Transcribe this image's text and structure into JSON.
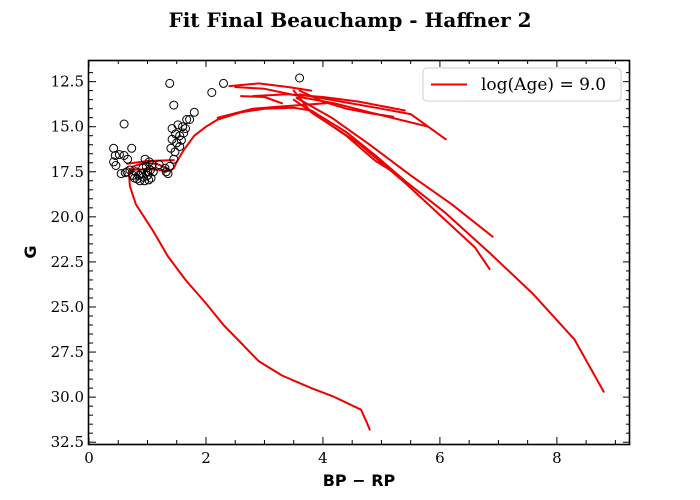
{
  "chart_data": {
    "type": "scatter",
    "title": "Fit Final Beauchamp - Haffner 2",
    "xlabel": "BP − RP",
    "ylabel": "G",
    "xlim": [
      0,
      9.25
    ],
    "ylim": [
      32.6,
      11.3
    ],
    "y_inverted": true,
    "x_ticks": [
      0,
      2,
      4,
      6,
      8
    ],
    "x_tick_labels": [
      "0",
      "2",
      "4",
      "6",
      "8"
    ],
    "y_ticks": [
      12.5,
      15.0,
      17.5,
      20.0,
      22.5,
      25.0,
      27.5,
      30.0,
      32.5
    ],
    "y_tick_labels": [
      "12.5",
      "15.0",
      "17.5",
      "20.0",
      "22.5",
      "25.0",
      "27.5",
      "30.0",
      "32.5"
    ],
    "grid": false,
    "legend_position": "top-right",
    "colors": {
      "isochrone": "#ee0000",
      "points": "#000000"
    },
    "series": [
      {
        "name": "log(Age) = 9.0",
        "kind": "line",
        "segments": [
          [
            [
              4.8,
              31.8
            ],
            [
              4.75,
              31.4
            ],
            [
              4.65,
              30.7
            ],
            [
              4.2,
              30.0
            ],
            [
              3.8,
              29.5
            ],
            [
              3.3,
              28.8
            ],
            [
              2.9,
              28.0
            ],
            [
              2.6,
              27.0
            ],
            [
              2.3,
              26.0
            ],
            [
              2.0,
              24.8
            ],
            [
              1.65,
              23.5
            ],
            [
              1.35,
              22.2
            ],
            [
              1.1,
              20.8
            ],
            [
              0.8,
              19.3
            ],
            [
              0.7,
              18.3
            ],
            [
              0.68,
              17.5
            ],
            [
              0.75,
              17.2
            ],
            [
              0.95,
              17.0
            ],
            [
              1.15,
              17.05
            ],
            [
              1.3,
              17.25
            ],
            [
              1.38,
              17.45
            ],
            [
              1.45,
              17.3
            ],
            [
              1.5,
              16.95
            ],
            [
              1.62,
              16.3
            ],
            [
              1.8,
              15.5
            ],
            [
              2.0,
              15.0
            ],
            [
              2.2,
              14.6
            ],
            [
              2.6,
              14.2
            ],
            [
              3.0,
              14.0
            ],
            [
              3.5,
              13.95
            ],
            [
              3.8,
              14.1
            ],
            [
              4.0,
              14.5
            ],
            [
              4.4,
              15.3
            ],
            [
              4.9,
              16.6
            ],
            [
              5.4,
              18.0
            ],
            [
              6.1,
              19.8
            ],
            [
              6.85,
              22.0
            ],
            [
              7.6,
              24.3
            ],
            [
              8.3,
              26.8
            ],
            [
              8.8,
              29.7
            ]
          ],
          [
            [
              3.5,
              13.5
            ],
            [
              3.9,
              14.4
            ],
            [
              4.4,
              15.5
            ],
            [
              4.9,
              16.9
            ],
            [
              5.2,
              17.5
            ]
          ],
          [
            [
              3.55,
              13.4
            ],
            [
              4.15,
              14.5
            ],
            [
              4.8,
              16.0
            ],
            [
              5.5,
              17.7
            ],
            [
              6.2,
              19.3
            ],
            [
              6.9,
              21.1
            ]
          ],
          [
            [
              3.5,
              13.0
            ],
            [
              3.8,
              14.2
            ],
            [
              4.6,
              15.9
            ],
            [
              5.4,
              18.1
            ],
            [
              6.1,
              20.2
            ],
            [
              6.6,
              21.7
            ],
            [
              6.85,
              22.9
            ]
          ],
          [
            [
              3.6,
              13.0
            ],
            [
              4.0,
              13.6
            ],
            [
              4.4,
              14.0
            ],
            [
              4.8,
              14.25
            ],
            [
              5.2,
              14.45
            ]
          ],
          [
            [
              3.6,
              13.2
            ],
            [
              4.3,
              13.6
            ],
            [
              5.0,
              14.0
            ],
            [
              5.5,
              14.3
            ],
            [
              6.1,
              15.7
            ]
          ],
          [
            [
              3.6,
              13.35
            ],
            [
              4.2,
              13.7
            ],
            [
              4.8,
              14.2
            ],
            [
              5.3,
              14.6
            ],
            [
              5.8,
              15.0
            ]
          ],
          [
            [
              2.8,
              13.3
            ],
            [
              3.4,
              13.2
            ],
            [
              4.0,
              13.35
            ],
            [
              4.6,
              13.6
            ],
            [
              5.4,
              14.1
            ]
          ],
          [
            [
              2.5,
              12.8
            ],
            [
              3.0,
              12.9
            ],
            [
              3.6,
              13.3
            ]
          ],
          [
            [
              2.4,
              12.75
            ],
            [
              2.9,
              12.6
            ],
            [
              3.4,
              12.8
            ],
            [
              3.8,
              13.0
            ]
          ],
          [
            [
              2.2,
              14.5
            ],
            [
              2.8,
              14.0
            ],
            [
              3.2,
              13.9
            ],
            [
              3.6,
              13.8
            ],
            [
              4.05,
              13.7
            ]
          ],
          [
            [
              2.6,
              13.3
            ],
            [
              3.0,
              13.35
            ],
            [
              3.3,
              13.7
            ]
          ],
          [
            [
              0.65,
              17.05
            ],
            [
              1.0,
              16.9
            ],
            [
              1.45,
              16.85
            ]
          ],
          [
            [
              0.7,
              17.4
            ],
            [
              1.0,
              17.35
            ],
            [
              1.38,
              17.45
            ]
          ]
        ]
      },
      {
        "name": "",
        "kind": "scatter",
        "points": [
          [
            0.42,
            16.2
          ],
          [
            0.45,
            16.6
          ],
          [
            0.42,
            16.95
          ],
          [
            0.46,
            17.15
          ],
          [
            0.52,
            16.55
          ],
          [
            0.55,
            17.6
          ],
          [
            0.6,
            16.6
          ],
          [
            0.6,
            14.85
          ],
          [
            0.62,
            17.55
          ],
          [
            0.65,
            17.5
          ],
          [
            0.66,
            16.8
          ],
          [
            0.7,
            17.4
          ],
          [
            0.73,
            16.2
          ],
          [
            0.75,
            17.7
          ],
          [
            0.78,
            17.85
          ],
          [
            0.8,
            17.5
          ],
          [
            0.82,
            17.9
          ],
          [
            0.85,
            17.7
          ],
          [
            0.87,
            18.0
          ],
          [
            0.9,
            17.6
          ],
          [
            0.92,
            17.3
          ],
          [
            0.93,
            17.8
          ],
          [
            0.95,
            18.0
          ],
          [
            0.96,
            16.8
          ],
          [
            0.98,
            17.2
          ],
          [
            1.0,
            17.5
          ],
          [
            1.0,
            17.7
          ],
          [
            1.02,
            17.95
          ],
          [
            1.03,
            16.95
          ],
          [
            1.05,
            17.4
          ],
          [
            1.06,
            17.85
          ],
          [
            1.08,
            17.1
          ],
          [
            1.1,
            17.5
          ],
          [
            1.2,
            17.1
          ],
          [
            1.3,
            17.3
          ],
          [
            1.32,
            17.5
          ],
          [
            1.35,
            17.6
          ],
          [
            1.38,
            17.2
          ],
          [
            1.38,
            12.6
          ],
          [
            1.4,
            16.2
          ],
          [
            1.42,
            15.7
          ],
          [
            1.42,
            15.1
          ],
          [
            1.45,
            13.8
          ],
          [
            1.45,
            16.8
          ],
          [
            1.47,
            16.4
          ],
          [
            1.48,
            15.4
          ],
          [
            1.5,
            15.9
          ],
          [
            1.52,
            14.9
          ],
          [
            1.55,
            16.1
          ],
          [
            1.55,
            15.5
          ],
          [
            1.58,
            15.75
          ],
          [
            1.6,
            15.0
          ],
          [
            1.62,
            15.35
          ],
          [
            1.65,
            15.1
          ],
          [
            1.67,
            14.6
          ],
          [
            1.72,
            14.6
          ],
          [
            1.8,
            14.2
          ],
          [
            2.1,
            13.1
          ],
          [
            2.3,
            12.6
          ],
          [
            3.6,
            12.3
          ]
        ]
      }
    ]
  }
}
